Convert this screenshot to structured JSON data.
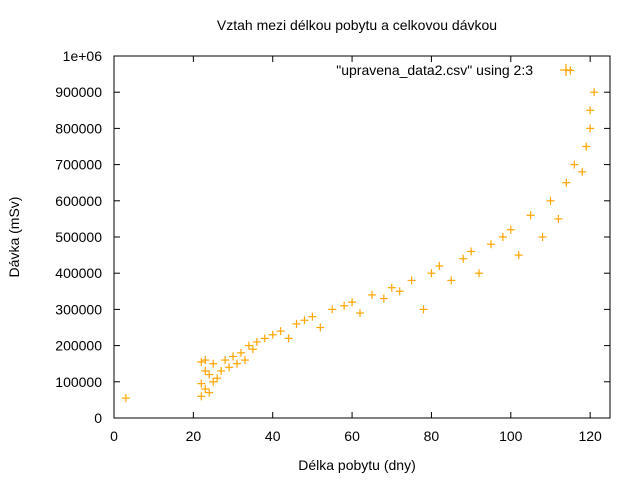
{
  "chart_data": {
    "type": "scatter",
    "title": "Vztah mezi délkou pobytu a celkovou dávkou",
    "xlabel": "Délka pobytu (dny)",
    "ylabel": "Dávka (mSv)",
    "xlim": [
      0,
      125
    ],
    "ylim": [
      0,
      1000000
    ],
    "x_ticks": [
      "0",
      "20",
      "40",
      "60",
      "80",
      "100",
      "120"
    ],
    "y_ticks": [
      "0",
      "100000",
      "200000",
      "300000",
      "400000",
      "500000",
      "600000",
      "700000",
      "800000",
      "900000",
      "1e+06"
    ],
    "grid": false,
    "legend_position": "top-right",
    "series": [
      {
        "name": "\"upravena_data2.csv\" using 2:3",
        "color": "#ffa500",
        "marker": "plus",
        "x": [
          3,
          22,
          22,
          22,
          23,
          23,
          23,
          24,
          24,
          25,
          25,
          26,
          27,
          28,
          29,
          30,
          31,
          32,
          33,
          34,
          35,
          36,
          38,
          40,
          42,
          44,
          46,
          48,
          50,
          52,
          55,
          58,
          60,
          62,
          65,
          68,
          70,
          72,
          75,
          78,
          80,
          82,
          85,
          88,
          90,
          92,
          95,
          98,
          100,
          102,
          105,
          108,
          110,
          112,
          114,
          115,
          116,
          118,
          119,
          120,
          120,
          121
        ],
        "y": [
          55000,
          60000,
          95000,
          155000,
          80000,
          130000,
          160000,
          70000,
          120000,
          100000,
          150000,
          110000,
          130000,
          160000,
          140000,
          170000,
          150000,
          180000,
          160000,
          200000,
          190000,
          210000,
          220000,
          230000,
          240000,
          220000,
          260000,
          270000,
          280000,
          250000,
          300000,
          310000,
          320000,
          290000,
          340000,
          330000,
          360000,
          350000,
          380000,
          300000,
          400000,
          420000,
          380000,
          440000,
          460000,
          400000,
          480000,
          500000,
          520000,
          450000,
          560000,
          500000,
          600000,
          550000,
          650000,
          960000,
          700000,
          680000,
          750000,
          800000,
          850000,
          900000
        ]
      }
    ]
  }
}
